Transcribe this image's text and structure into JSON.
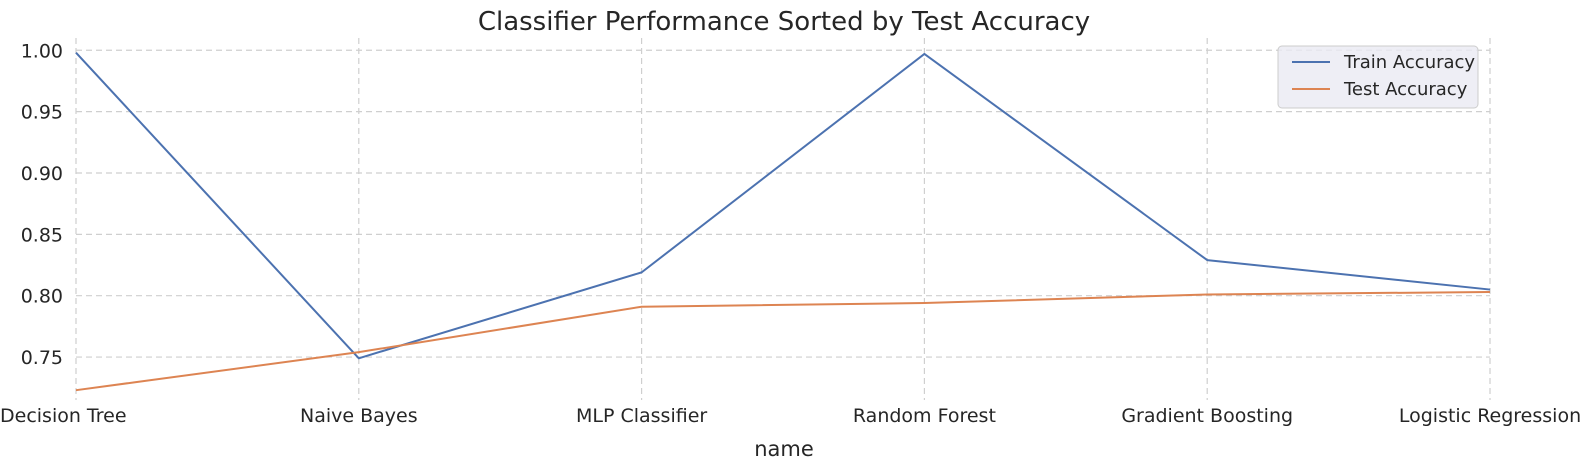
{
  "chart_data": {
    "type": "line",
    "title": "Classifier Performance Sorted by Test Accuracy",
    "xlabel": "name",
    "ylabel": "",
    "categories": [
      "Decision Tree",
      "Naive Bayes",
      "MLP Classifier",
      "Random Forest",
      "Gradient Boosting",
      "Logistic Regression"
    ],
    "series": [
      {
        "name": "Train Accuracy",
        "color": "#4c72b0",
        "values": [
          0.998,
          0.749,
          0.819,
          0.997,
          0.829,
          0.805
        ]
      },
      {
        "name": "Test Accuracy",
        "color": "#dd8452",
        "values": [
          0.723,
          0.754,
          0.791,
          0.794,
          0.801,
          0.803
        ]
      }
    ],
    "ylim": [
      0.715,
      1.01
    ],
    "yticks": [
      "0.75",
      "0.80",
      "0.85",
      "0.90",
      "0.95",
      "1.00"
    ],
    "grid": true,
    "legend_position": "top-right"
  }
}
